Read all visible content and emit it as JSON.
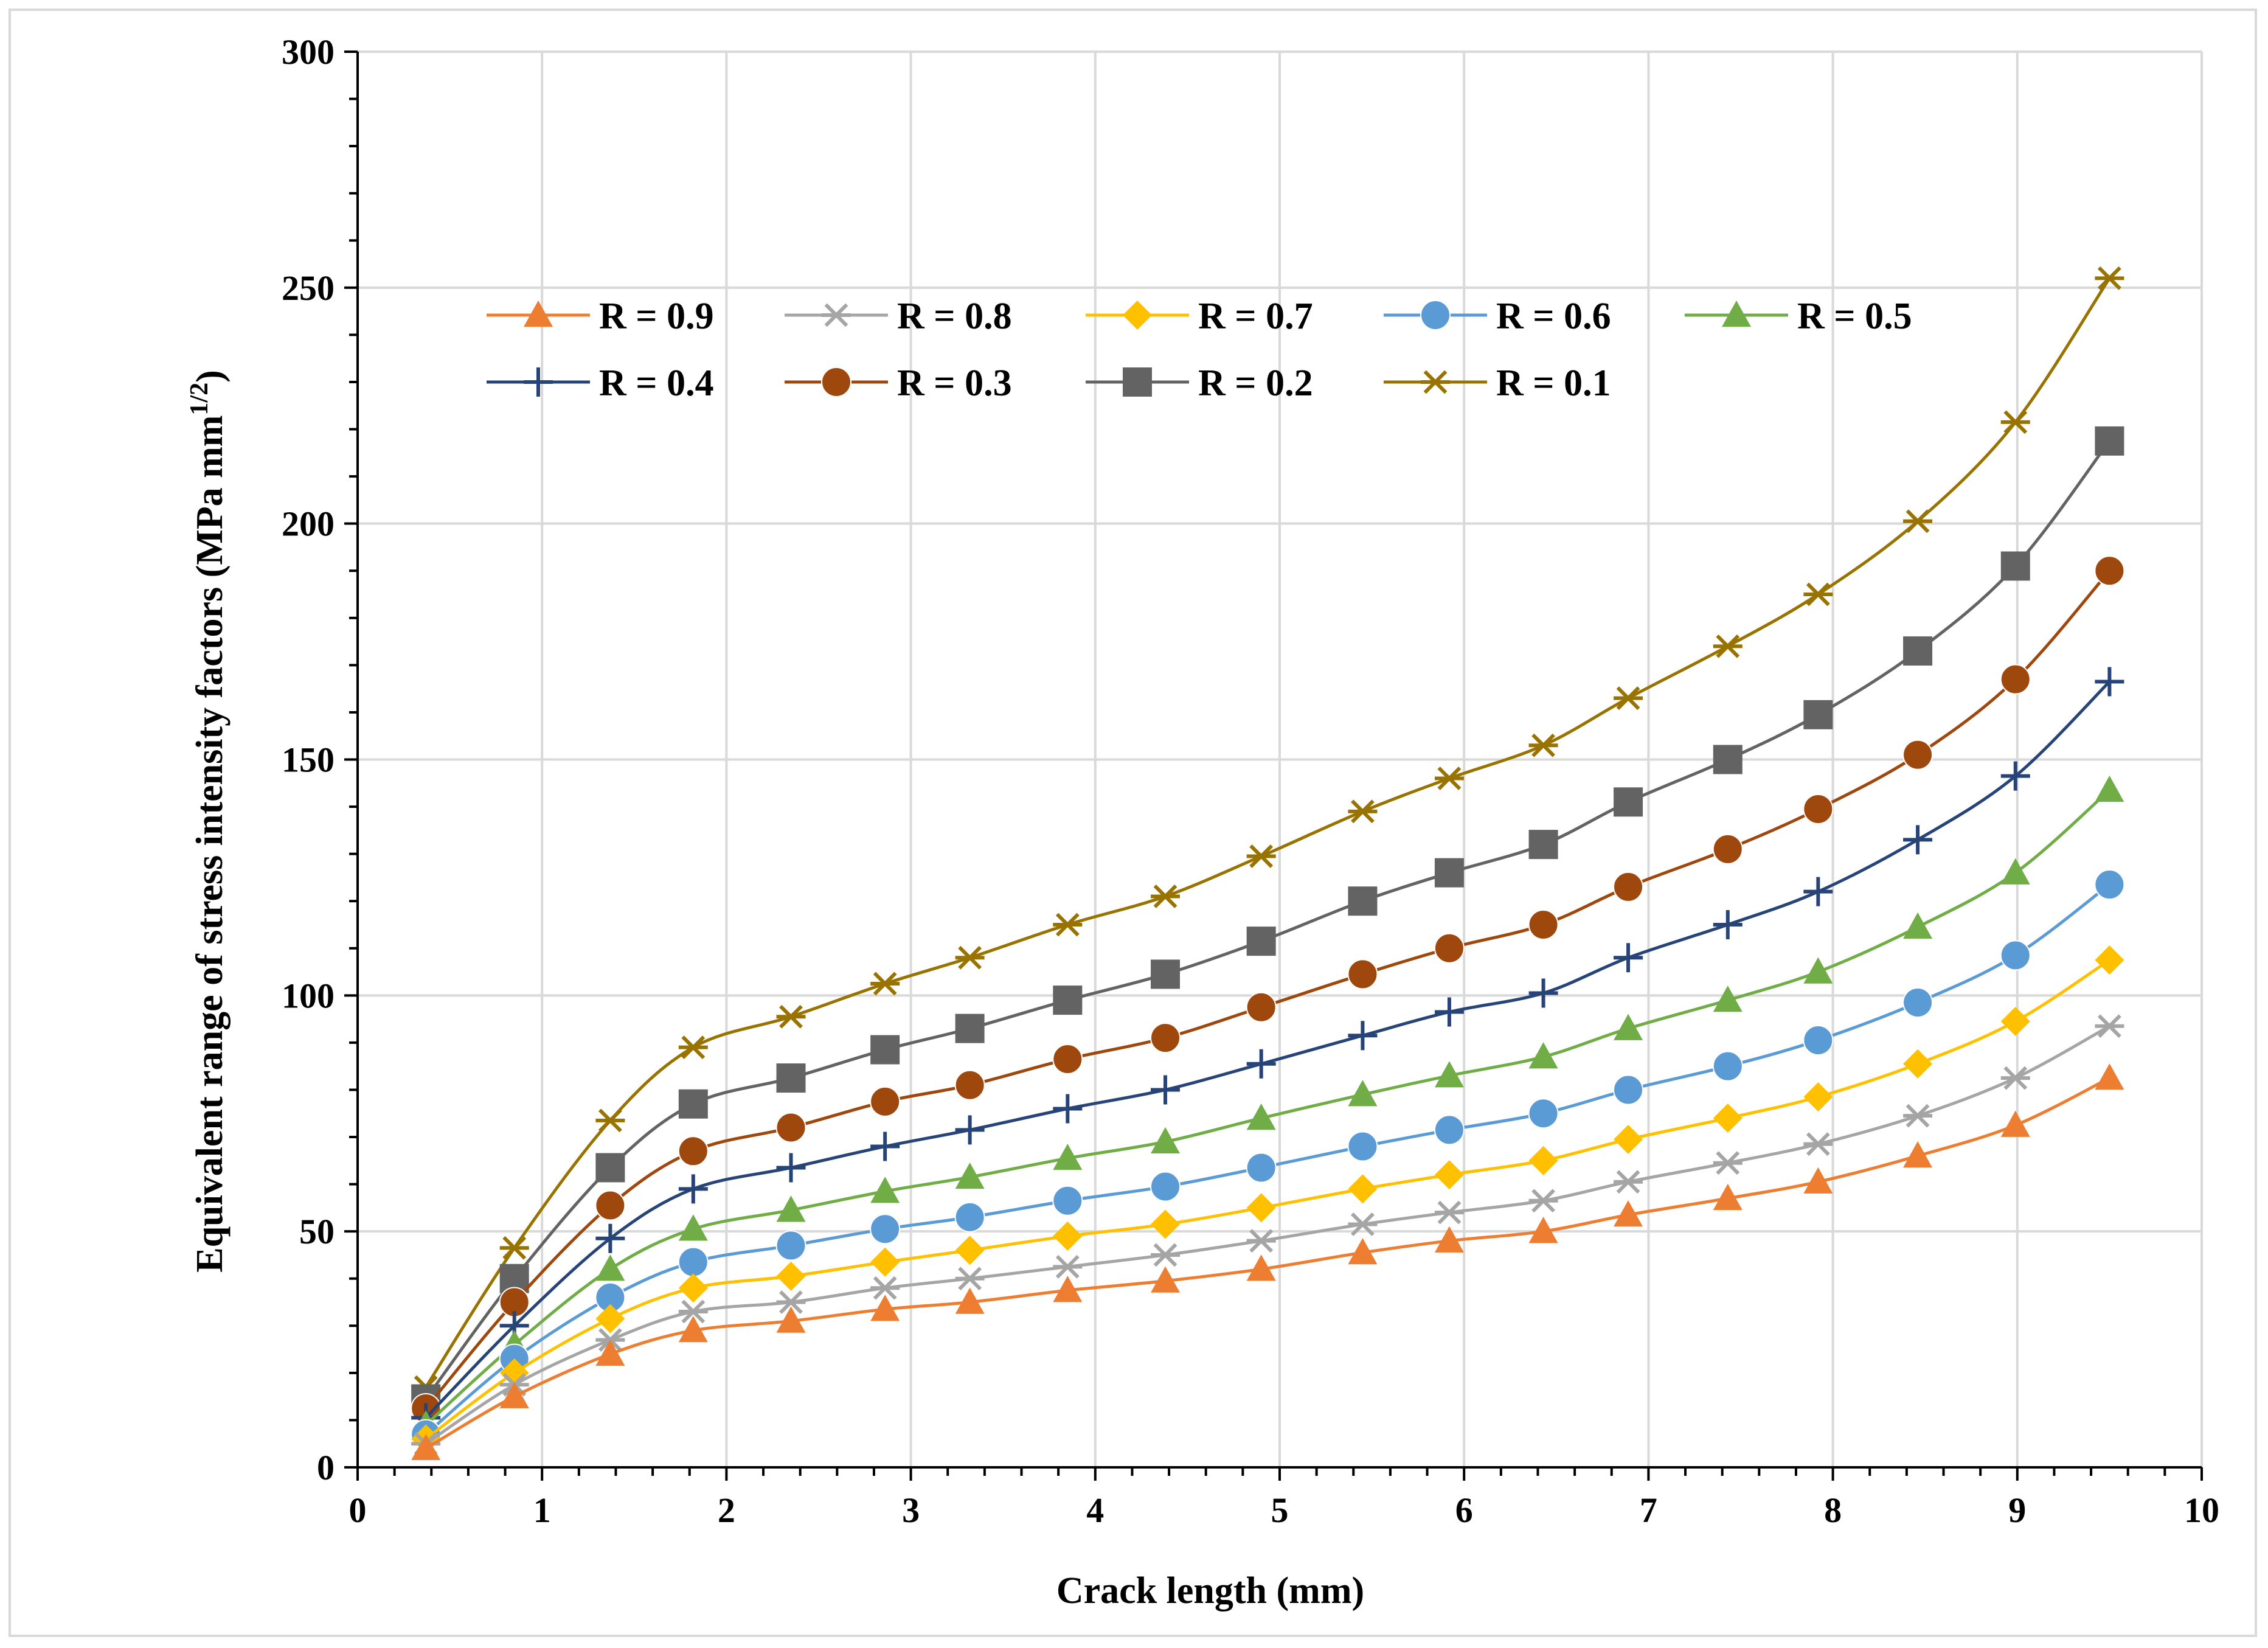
{
  "chart_data": {
    "type": "line",
    "title": "",
    "xlabel": "Crack length (mm)",
    "ylabel_main": "Equivalent range of stress intensity factors (MPa mm",
    "ylabel_sup": "1/2",
    "ylabel_close": ")",
    "xlim": [
      0,
      10
    ],
    "ylim": [
      0,
      300
    ],
    "xticks": [
      "0",
      "1",
      "2",
      "3",
      "4",
      "5",
      "6",
      "7",
      "8",
      "9",
      "10"
    ],
    "yticks": [
      "0",
      "50",
      "100",
      "150",
      "200",
      "250",
      "300"
    ],
    "grid": true,
    "legend_position": "top-left",
    "x": [
      0.37,
      0.85,
      1.37,
      1.82,
      2.35,
      2.86,
      3.32,
      3.85,
      4.38,
      4.9,
      5.45,
      5.92,
      6.43,
      6.89,
      7.43,
      7.92,
      8.46,
      8.99,
      9.5
    ],
    "series": [
      {
        "name": "R = 0.9",
        "color": "#ed7d31",
        "marker": "triangle",
        "values": [
          4,
          15,
          24,
          29,
          31,
          33.5,
          35,
          37.5,
          39.5,
          42,
          45.5,
          48,
          50,
          53.5,
          57,
          60.5,
          66,
          72.5,
          82.5
        ]
      },
      {
        "name": "R = 0.8",
        "color": "#a5a5a5",
        "marker": "asterisk",
        "values": [
          5,
          17.5,
          27,
          33,
          35,
          38,
          40,
          42.5,
          45,
          48,
          51.5,
          54,
          56.5,
          60.5,
          64.5,
          68.5,
          74.5,
          82.5,
          93.5
        ]
      },
      {
        "name": "R = 0.7",
        "color": "#ffc000",
        "marker": "diamond",
        "values": [
          6,
          20,
          31.5,
          38,
          40.5,
          43.5,
          46,
          49,
          51.5,
          55,
          59,
          62,
          65,
          69.5,
          74,
          78.5,
          85.5,
          94.5,
          107.5
        ]
      },
      {
        "name": "R = 0.6",
        "color": "#5b9bd5",
        "marker": "circle",
        "values": [
          7,
          23,
          36,
          43.5,
          47,
          50.5,
          53,
          56.5,
          59.5,
          63.5,
          68,
          71.5,
          75,
          80,
          85,
          90.5,
          98.5,
          108.5,
          123.5
        ]
      },
      {
        "name": "R = 0.5",
        "color": "#70ad47",
        "marker": "triangle",
        "values": [
          9,
          26,
          42,
          50.5,
          54.5,
          58.5,
          61.5,
          65.5,
          69,
          74,
          79,
          83,
          87,
          93,
          99,
          105,
          114.5,
          126,
          143.5
        ]
      },
      {
        "name": "R = 0.4",
        "color": "#264478",
        "marker": "plus",
        "values": [
          10.5,
          30,
          48.5,
          59,
          63.5,
          68,
          71.5,
          76,
          80,
          85.5,
          91.5,
          96.5,
          100.5,
          108,
          115,
          122,
          133,
          146.5,
          166.5
        ]
      },
      {
        "name": "R = 0.3",
        "color": "#9e480e",
        "marker": "circle",
        "values": [
          12.5,
          35,
          55.5,
          67,
          72,
          77.5,
          81,
          86.5,
          91,
          97.5,
          104.5,
          110,
          115,
          123,
          131,
          139.5,
          151,
          167,
          190
        ]
      },
      {
        "name": "R = 0.2",
        "color": "#636363",
        "marker": "square",
        "values": [
          14.5,
          40,
          63.5,
          77,
          82.5,
          88.5,
          93,
          99,
          104.5,
          111.5,
          120,
          126,
          132,
          141,
          150,
          159.5,
          173,
          191,
          217.5
        ]
      },
      {
        "name": "R = 0.1",
        "color": "#997300",
        "marker": "asterisk",
        "values": [
          17,
          46.5,
          73.5,
          89,
          95.5,
          102.5,
          108,
          115,
          121,
          129.5,
          139,
          146,
          153,
          163,
          174,
          185,
          200.5,
          221.5,
          252
        ]
      }
    ]
  }
}
